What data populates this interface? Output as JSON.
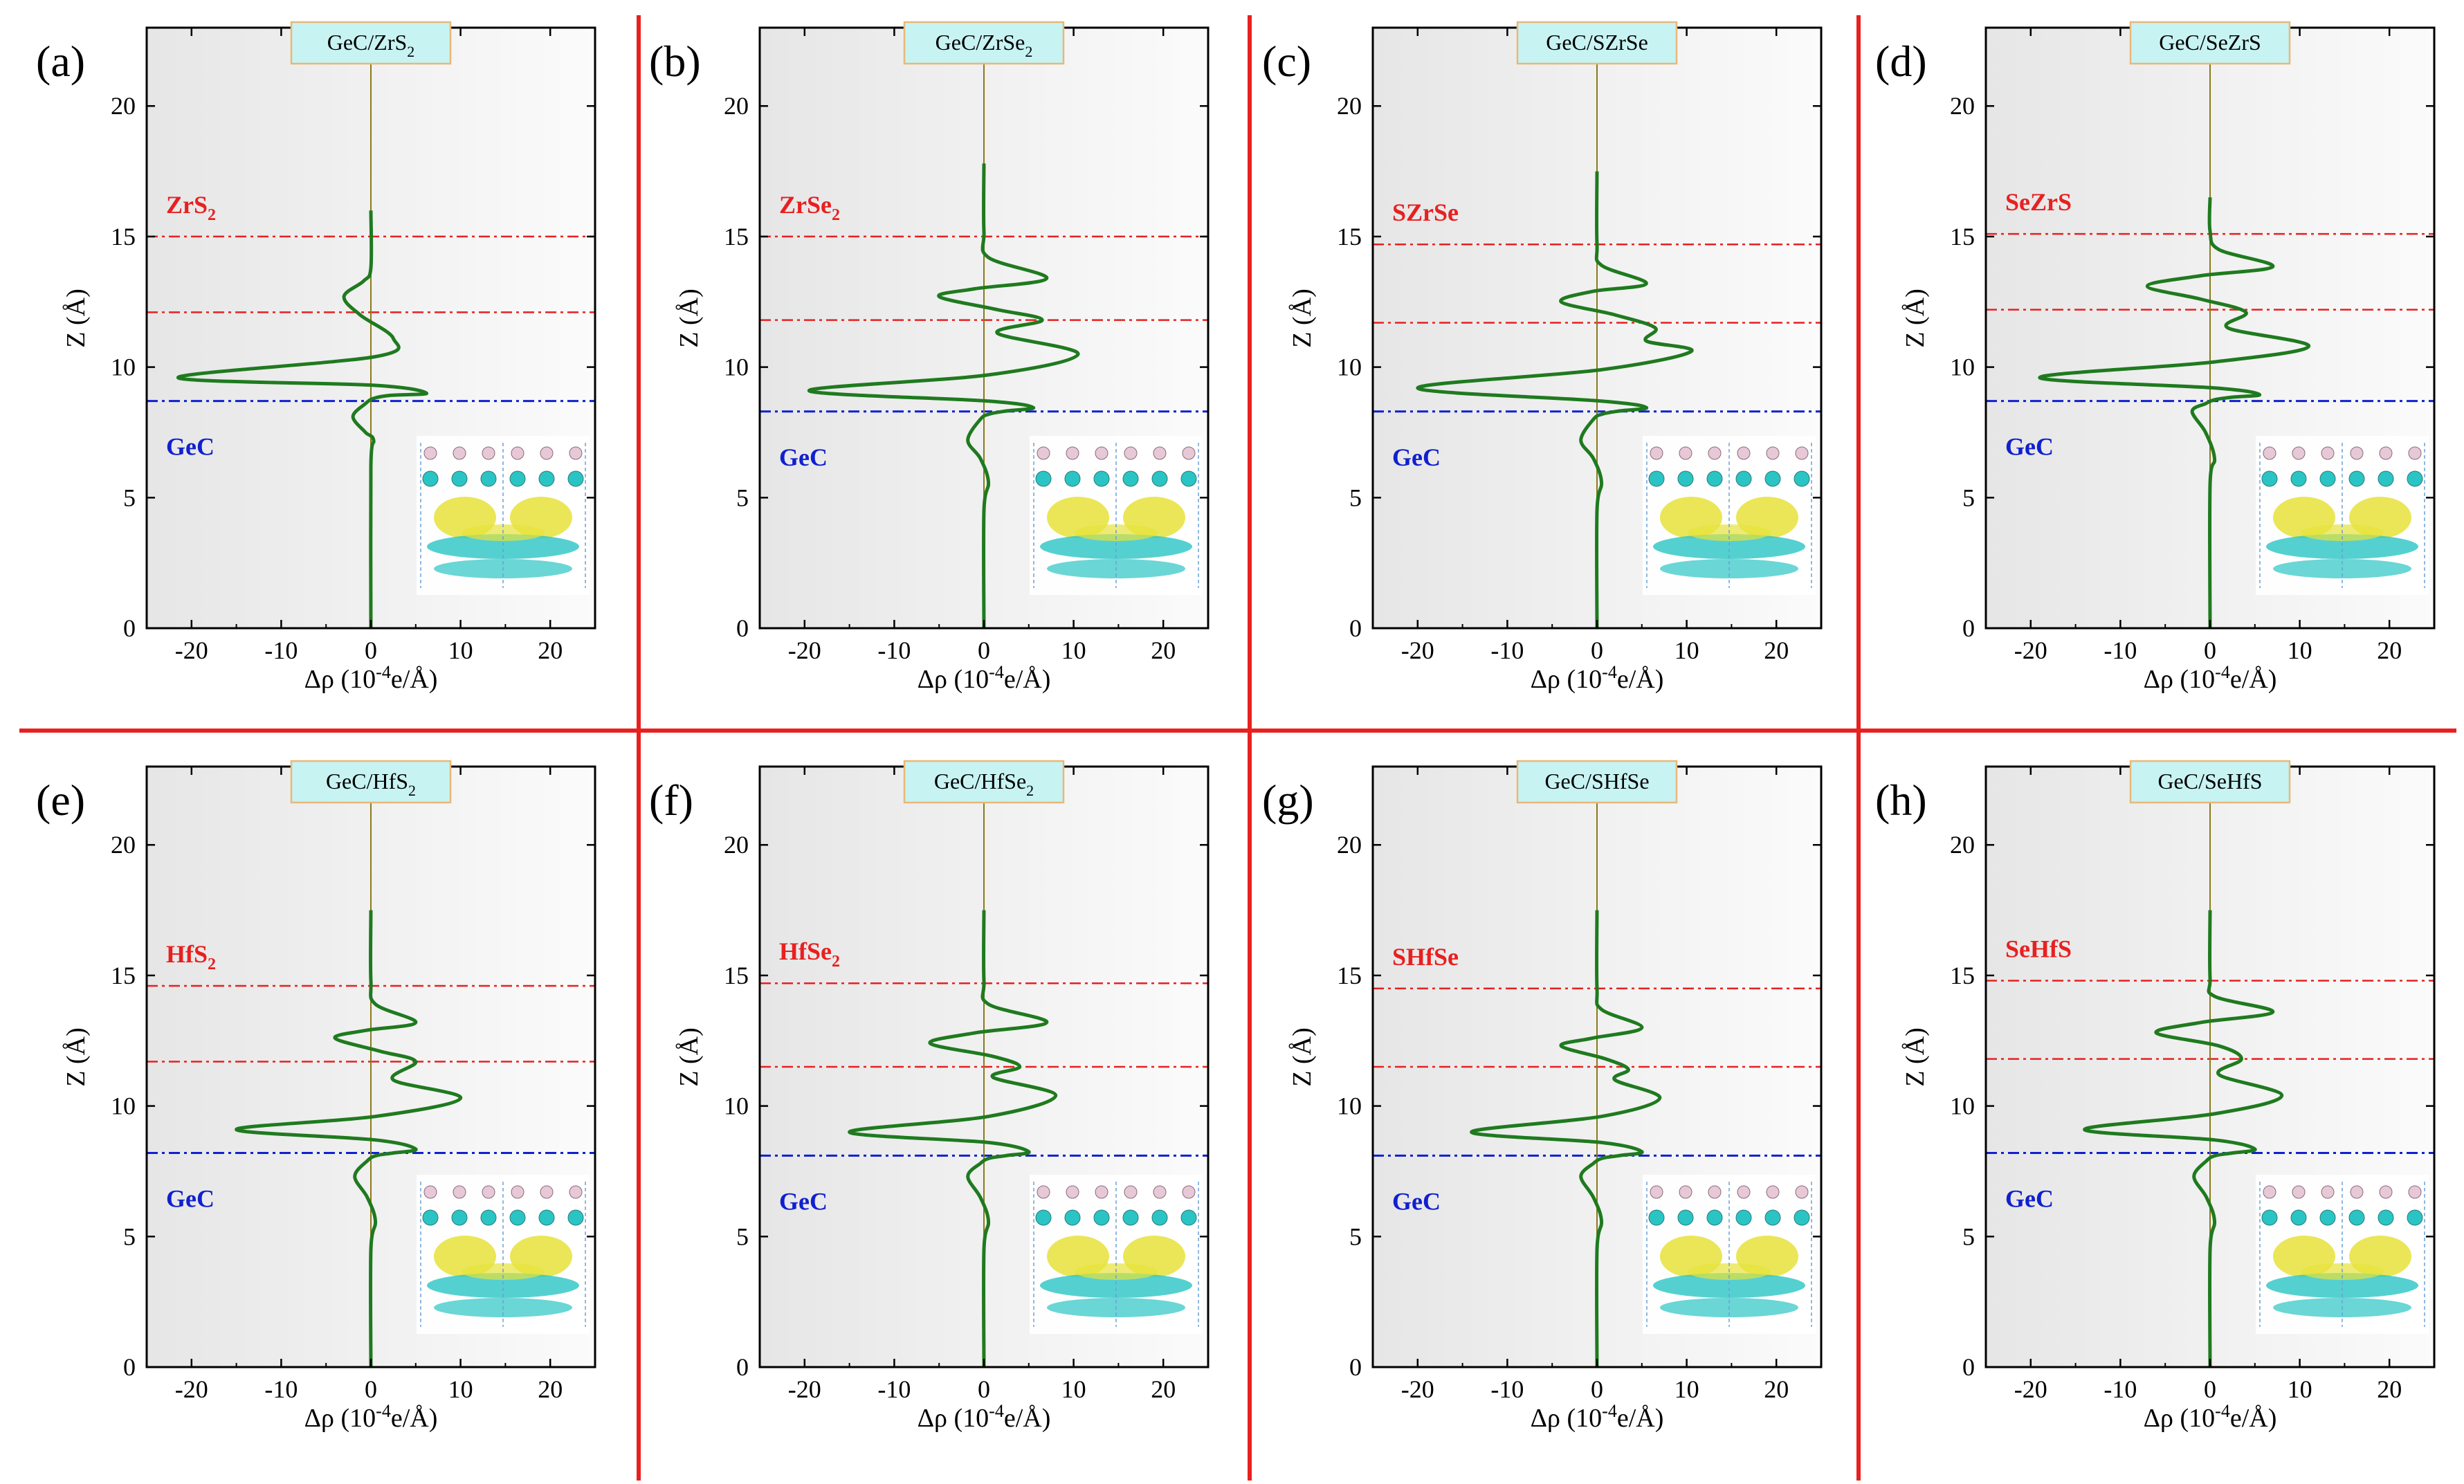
{
  "figure": {
    "colors": {
      "curve": "#1f7a1f",
      "zero_line": "#8a7a1a",
      "upper_layer": "#e82020",
      "lower_layer": "#1020d0",
      "separator": "#e82020",
      "title_bg": "#c8f3f3",
      "title_border": "#e8b878",
      "plot_bg_dark": "#e6e6e6",
      "plot_bg_light": "#fbfbfb",
      "iso_yellow": "#e6e23a",
      "iso_cyan": "#2bc4c4"
    },
    "xlabel_main": "Δρ (10",
    "xlabel_exp": "-4",
    "xlabel_tail": "e/Å)",
    "ylabel": "Z (Å)"
  },
  "chart_data": [
    {
      "type": "line",
      "panel": "(a)",
      "title": {
        "main": "GeC/ZrS",
        "sub": "2"
      },
      "upper_label": {
        "main": "ZrS",
        "sub": "2"
      },
      "lower_label": "GeC",
      "xlabel": "Δρ (10-4e/Å)",
      "ylabel": "Z (Å)",
      "xlim": [
        -25,
        25
      ],
      "ylim": [
        0,
        23
      ],
      "xticks": [
        -20,
        -10,
        0,
        10,
        20
      ],
      "yticks": [
        0,
        5,
        10,
        15,
        20
      ],
      "upper_lines": [
        15.0,
        12.1
      ],
      "lower_line": 8.7,
      "series": [
        {
          "x": [
            0,
            0,
            0.3,
            -0.6,
            -2,
            -0.6,
            0.3,
            2.2,
            6.2,
            0.5,
            -21.5,
            0.5,
            2.5,
            -1.2,
            -3,
            -0.8,
            0,
            0
          ],
          "y": [
            0,
            6.2,
            7.2,
            7.5,
            8.1,
            8.6,
            8.8,
            8.92,
            9.0,
            9.3,
            9.6,
            10.4,
            11.1,
            12.0,
            12.7,
            13.3,
            13.8,
            16.0
          ]
        }
      ]
    },
    {
      "type": "line",
      "panel": "(b)",
      "title": {
        "main": "GeC/ZrSe",
        "sub": "2"
      },
      "upper_label": {
        "main": "ZrSe",
        "sub": "2"
      },
      "lower_label": "GeC",
      "xlabel": "Δρ (10-4e/Å)",
      "ylabel": "Z (Å)",
      "xlim": [
        -25,
        25
      ],
      "ylim": [
        0,
        23
      ],
      "xticks": [
        -20,
        -10,
        0,
        10,
        20
      ],
      "yticks": [
        0,
        5,
        10,
        15,
        20
      ],
      "upper_lines": [
        15.0,
        11.8
      ],
      "lower_line": 8.3,
      "series": [
        {
          "x": [
            0,
            0,
            0.5,
            -0.4,
            -1.8,
            -0.4,
            0.6,
            2.5,
            5.5,
            0.5,
            -19.5,
            0.5,
            10.5,
            1.5,
            6.5,
            1.5,
            -5,
            -1,
            7,
            0.5,
            0,
            0
          ],
          "y": [
            0,
            4.5,
            5.6,
            6.5,
            7.2,
            8.0,
            8.2,
            8.32,
            8.45,
            8.7,
            9.1,
            9.7,
            10.5,
            11.3,
            11.8,
            12.2,
            12.7,
            13.0,
            13.4,
            14.2,
            15.2,
            17.8
          ]
        }
      ]
    },
    {
      "type": "line",
      "panel": "(c)",
      "title": {
        "main": "GeC/SZrSe"
      },
      "upper_label": {
        "main": "SZrSe"
      },
      "lower_label": "GeC",
      "xlabel": "Δρ (10-4e/Å)",
      "ylabel": "Z (Å)",
      "xlim": [
        -25,
        25
      ],
      "ylim": [
        0,
        23
      ],
      "xticks": [
        -20,
        -10,
        0,
        10,
        20
      ],
      "yticks": [
        0,
        5,
        10,
        15,
        20
      ],
      "upper_lines": [
        14.7,
        11.7
      ],
      "lower_line": 8.3,
      "series": [
        {
          "x": [
            0,
            0,
            0.5,
            -0.4,
            -1.8,
            -0.4,
            0.6,
            2.5,
            5.5,
            0.5,
            -20,
            0.5,
            10.5,
            5.5,
            6.5,
            2,
            -4,
            -0.5,
            5.5,
            0.5,
            0,
            0
          ],
          "y": [
            0,
            4.5,
            5.6,
            6.5,
            7.2,
            8.0,
            8.2,
            8.32,
            8.45,
            8.7,
            9.2,
            9.9,
            10.6,
            11.0,
            11.5,
            12.0,
            12.5,
            12.9,
            13.2,
            13.9,
            14.7,
            17.5
          ]
        }
      ]
    },
    {
      "type": "line",
      "panel": "(d)",
      "title": {
        "main": "GeC/SeZrS"
      },
      "upper_label": {
        "main": "SeZrS"
      },
      "lower_label": "GeC",
      "xlabel": "Δρ (10-4e/Å)",
      "ylabel": "Z (Å)",
      "xlim": [
        -25,
        25
      ],
      "ylim": [
        0,
        23
      ],
      "xticks": [
        -20,
        -10,
        0,
        10,
        20
      ],
      "yticks": [
        0,
        5,
        10,
        15,
        20
      ],
      "upper_lines": [
        15.1,
        12.2
      ],
      "lower_line": 8.7,
      "series": [
        {
          "x": [
            0,
            0,
            0.5,
            -0.5,
            -2,
            -0.5,
            0.5,
            2.5,
            5.5,
            0.5,
            -19,
            0.5,
            11,
            2,
            4,
            -1,
            -7,
            -1,
            7,
            1,
            0,
            0
          ],
          "y": [
            0,
            5.5,
            6.5,
            7.5,
            8.3,
            8.6,
            8.75,
            8.85,
            8.95,
            9.2,
            9.6,
            10.2,
            10.8,
            11.5,
            12.1,
            12.6,
            13.1,
            13.5,
            13.85,
            14.5,
            15.2,
            16.5
          ]
        }
      ]
    },
    {
      "type": "line",
      "panel": "(e)",
      "title": {
        "main": "GeC/HfS",
        "sub": "2"
      },
      "upper_label": {
        "main": "HfS",
        "sub": "2"
      },
      "lower_label": "GeC",
      "xlabel": "Δρ (10-4e/Å)",
      "ylabel": "Z (Å)",
      "xlim": [
        -25,
        25
      ],
      "ylim": [
        0,
        23
      ],
      "xticks": [
        -20,
        -10,
        0,
        10,
        20
      ],
      "yticks": [
        0,
        5,
        10,
        15,
        20
      ],
      "upper_lines": [
        14.6,
        11.7
      ],
      "lower_line": 8.2,
      "series": [
        {
          "x": [
            0,
            0,
            0.5,
            -0.4,
            -1.8,
            -0.4,
            0.6,
            2.5,
            5,
            0.5,
            -15,
            0.5,
            10,
            2.5,
            5,
            1,
            -4,
            -0.5,
            5,
            0.5,
            0,
            0
          ],
          "y": [
            0,
            4.5,
            5.6,
            6.5,
            7.3,
            7.9,
            8.1,
            8.2,
            8.35,
            8.7,
            9.1,
            9.6,
            10.3,
            11.0,
            11.7,
            12.1,
            12.6,
            12.9,
            13.2,
            13.9,
            14.8,
            17.5
          ]
        }
      ]
    },
    {
      "type": "line",
      "panel": "(f)",
      "title": {
        "main": "GeC/HfSe",
        "sub": "2"
      },
      "upper_label": {
        "main": "HfSe",
        "sub": "2"
      },
      "lower_label": "GeC",
      "xlabel": "Δρ (10-4e/Å)",
      "ylabel": "Z (Å)",
      "xlim": [
        -25,
        25
      ],
      "ylim": [
        0,
        23
      ],
      "xticks": [
        -20,
        -10,
        0,
        10,
        20
      ],
      "yticks": [
        0,
        5,
        10,
        15,
        20
      ],
      "upper_lines": [
        14.7,
        11.5
      ],
      "lower_line": 8.1,
      "series": [
        {
          "x": [
            0,
            0,
            0.5,
            -0.4,
            -1.8,
            -0.4,
            0.6,
            2.5,
            5,
            0.5,
            -15,
            0.5,
            8,
            1,
            4,
            1,
            -6,
            -1,
            7,
            0.5,
            0,
            0
          ],
          "y": [
            0,
            4.5,
            5.6,
            6.5,
            7.3,
            7.8,
            8.0,
            8.1,
            8.25,
            8.6,
            9.0,
            9.6,
            10.4,
            11.1,
            11.5,
            11.9,
            12.4,
            12.8,
            13.2,
            13.9,
            14.8,
            17.5
          ]
        }
      ]
    },
    {
      "type": "line",
      "panel": "(g)",
      "title": {
        "main": "GeC/SHfSe"
      },
      "upper_label": {
        "main": "SHfSe"
      },
      "lower_label": "GeC",
      "xlabel": "Δρ (10-4e/Å)",
      "ylabel": "Z (Å)",
      "xlim": [
        -25,
        25
      ],
      "ylim": [
        0,
        23
      ],
      "xticks": [
        -20,
        -10,
        0,
        10,
        20
      ],
      "yticks": [
        0,
        5,
        10,
        15,
        20
      ],
      "upper_lines": [
        14.5,
        11.5
      ],
      "lower_line": 8.1,
      "series": [
        {
          "x": [
            0,
            0,
            0.5,
            -0.4,
            -1.8,
            -0.4,
            0.6,
            2.5,
            5,
            0.5,
            -14,
            0.5,
            7,
            2,
            3.5,
            1,
            -4,
            -0.5,
            5,
            0.5,
            0,
            0
          ],
          "y": [
            0,
            4.5,
            5.6,
            6.5,
            7.3,
            7.8,
            8.0,
            8.1,
            8.25,
            8.6,
            9.0,
            9.6,
            10.3,
            11.0,
            11.4,
            11.8,
            12.3,
            12.6,
            13.0,
            13.7,
            14.5,
            17.5
          ]
        }
      ]
    },
    {
      "type": "line",
      "panel": "(h)",
      "title": {
        "main": "GeC/SeHfS"
      },
      "upper_label": {
        "main": "SeHfS"
      },
      "lower_label": "GeC",
      "xlabel": "Δρ (10-4e/Å)",
      "ylabel": "Z (Å)",
      "xlim": [
        -25,
        25
      ],
      "ylim": [
        0,
        23
      ],
      "xticks": [
        -20,
        -10,
        0,
        10,
        20
      ],
      "yticks": [
        0,
        5,
        10,
        15,
        20
      ],
      "upper_lines": [
        14.8,
        11.8
      ],
      "lower_line": 8.2,
      "series": [
        {
          "x": [
            0,
            0,
            0.5,
            -0.4,
            -1.8,
            -0.4,
            0.6,
            2.5,
            5,
            0.5,
            -14,
            0.5,
            8,
            1,
            3.5,
            1,
            -6,
            -1,
            7,
            0.5,
            0,
            0
          ],
          "y": [
            0,
            4.5,
            5.6,
            6.5,
            7.3,
            7.9,
            8.1,
            8.2,
            8.35,
            8.7,
            9.1,
            9.7,
            10.4,
            11.2,
            11.8,
            12.3,
            12.8,
            13.2,
            13.6,
            14.2,
            14.9,
            17.5
          ]
        }
      ]
    }
  ]
}
